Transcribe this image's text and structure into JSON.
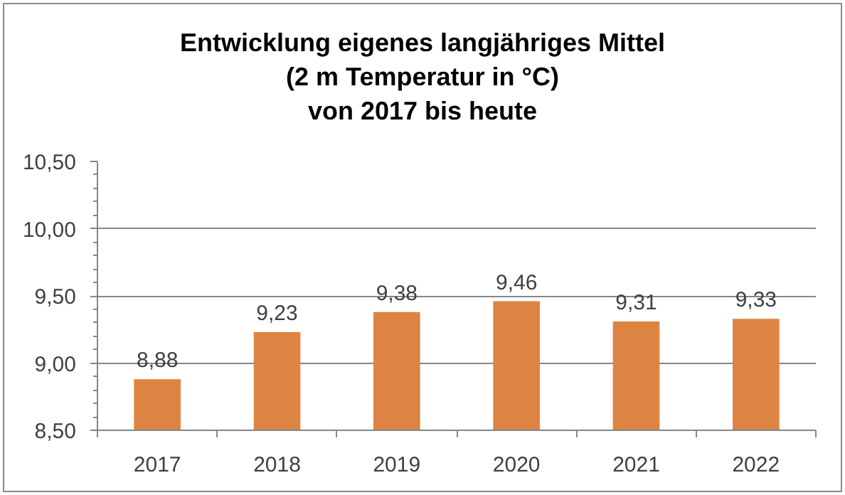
{
  "chart_data": {
    "type": "bar",
    "title": "Entwicklung eigenes langjähriges Mittel\n(2 m Temperatur in °C)\nvon 2017 bis heute",
    "categories": [
      "2017",
      "2018",
      "2019",
      "2020",
      "2021",
      "2022"
    ],
    "values": [
      8.88,
      9.23,
      9.38,
      9.46,
      9.31,
      9.33
    ],
    "value_labels": [
      "8,88",
      "9,23",
      "9,38",
      "9,46",
      "9,31",
      "9,33"
    ],
    "color": "#dd8442",
    "ylim": [
      8.5,
      10.5
    ],
    "yticks": [
      {
        "value": 8.5,
        "label": "8,50"
      },
      {
        "value": 8.6,
        "label": null
      },
      {
        "value": 8.7,
        "label": null
      },
      {
        "value": 8.8,
        "label": null
      },
      {
        "value": 8.9,
        "label": null
      },
      {
        "value": 9.0,
        "label": "9,00"
      },
      {
        "value": 9.1,
        "label": null
      },
      {
        "value": 9.2,
        "label": null
      },
      {
        "value": 9.3,
        "label": null
      },
      {
        "value": 9.4,
        "label": null
      },
      {
        "value": 9.5,
        "label": "9,50"
      },
      {
        "value": 9.6,
        "label": null
      },
      {
        "value": 9.7,
        "label": null
      },
      {
        "value": 9.8,
        "label": null
      },
      {
        "value": 9.9,
        "label": null
      },
      {
        "value": 10.0,
        "label": "10,00"
      },
      {
        "value": 10.1,
        "label": null
      },
      {
        "value": 10.2,
        "label": null
      },
      {
        "value": 10.3,
        "label": null
      },
      {
        "value": 10.4,
        "label": null
      },
      {
        "value": 10.5,
        "label": "10,50"
      }
    ],
    "grid": "y"
  }
}
